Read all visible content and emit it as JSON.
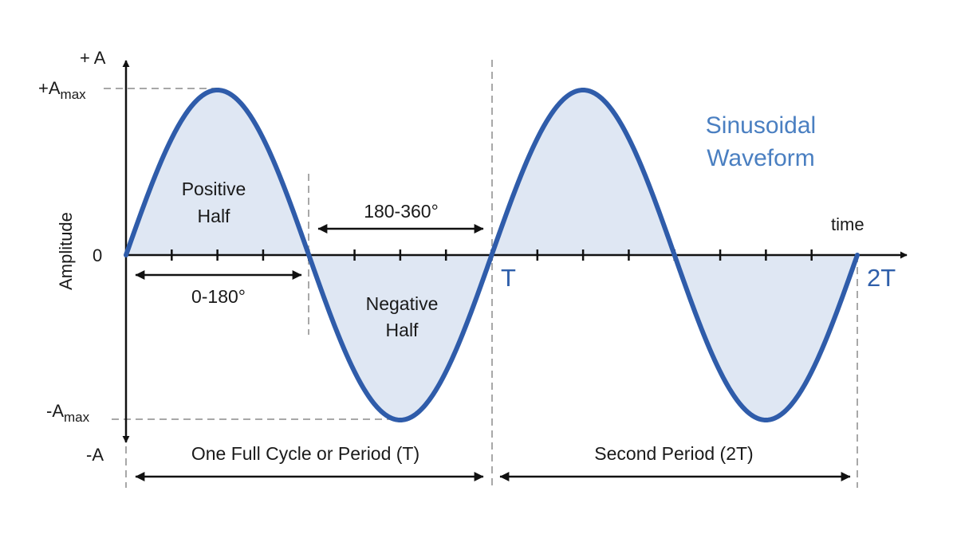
{
  "title_line1": "Sinusoidal",
  "title_line2": "Waveform",
  "y_axis": {
    "label": "Amplitude",
    "top": "+ A",
    "max": "+A",
    "max_sub": "max",
    "zero": "0",
    "min": "-A",
    "min_sub": "max",
    "bottom": "-A"
  },
  "x_axis": {
    "label": "time",
    "period_1": "T",
    "period_2": "2T"
  },
  "annotations": {
    "positive_half_line1": "Positive",
    "positive_half_line2": "Half",
    "negative_half_line1": "Negative",
    "negative_half_line2": "Half",
    "range_first_half": "0-180°",
    "range_second_half": "180-360°",
    "first_period": "One Full Cycle or Period (T)",
    "second_period": "Second Period (2T)"
  },
  "colors": {
    "wave": "#2f5caa",
    "fill": "#dde6f2",
    "axis": "#111111",
    "guides": "#a8a8a8",
    "title": "#4a7fc1"
  },
  "chart_data": {
    "type": "line",
    "function": "sine",
    "cycles": 2,
    "x_ticks": [
      "0",
      "T",
      "2T"
    ],
    "y_ticks": [
      "-Amax",
      "0",
      "+Amax"
    ]
  }
}
